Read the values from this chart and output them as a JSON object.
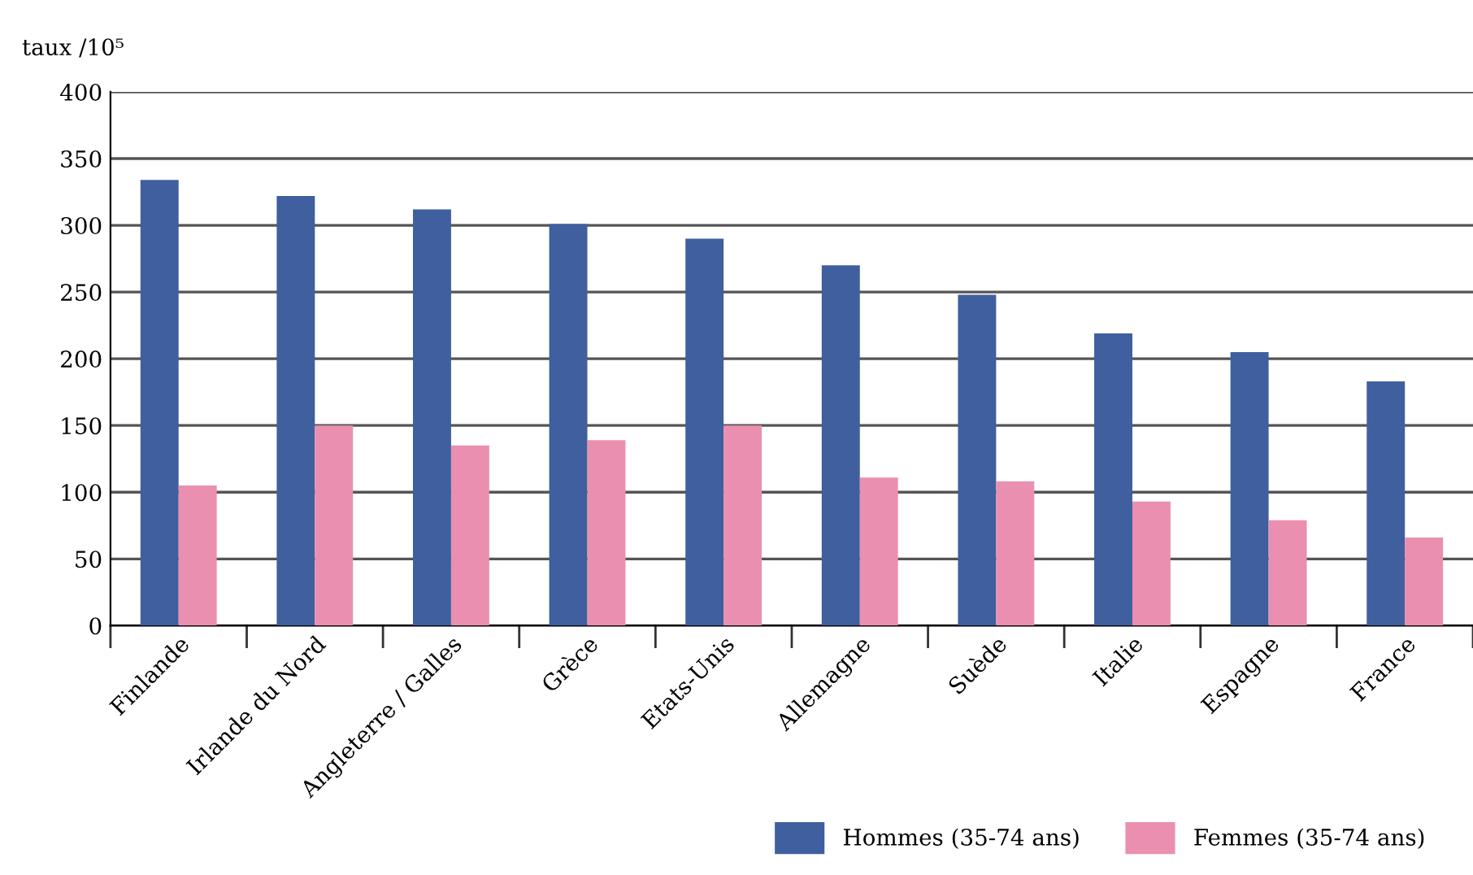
{
  "chart_data": {
    "type": "bar",
    "ylabel": "taux /10⁵",
    "categories": [
      "Finlande",
      "Irlande du Nord",
      "Angleterre / Galles",
      "Grèce",
      "Etats-Unis",
      "Allemagne",
      "Suède",
      "Italie",
      "Espagne",
      "France"
    ],
    "series": [
      {
        "name": "Hommes (35-74 ans)",
        "color": "#3f5f9e",
        "values": [
          334,
          322,
          312,
          301,
          290,
          270,
          248,
          219,
          205,
          183
        ]
      },
      {
        "name": "Femmes (35-74 ans)",
        "color": "#ea8fb0",
        "values": [
          105,
          150,
          135,
          139,
          150,
          111,
          108,
          93,
          79,
          66
        ]
      }
    ],
    "ylim": [
      0,
      400
    ],
    "yticks": [
      0,
      50,
      100,
      150,
      200,
      250,
      300,
      350,
      400
    ],
    "grid": "y",
    "legend": "bottom"
  }
}
